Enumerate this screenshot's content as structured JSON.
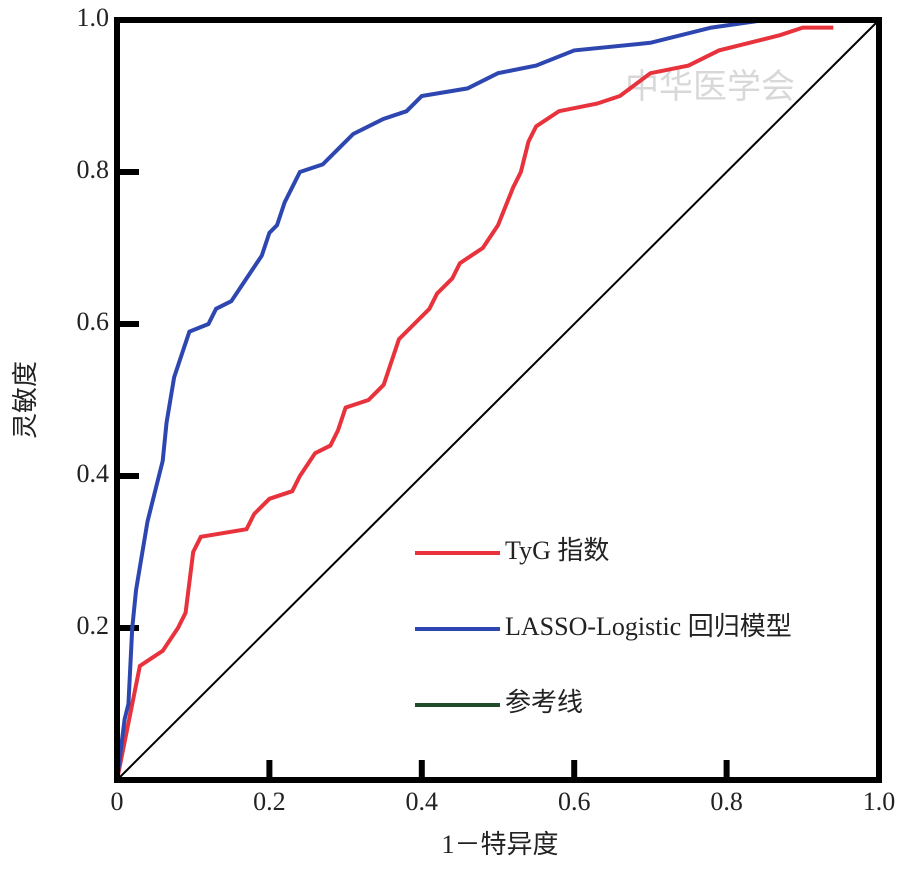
{
  "chart_data": {
    "type": "line",
    "xlabel": "1－特异度",
    "ylabel": "灵敏度",
    "watermark": "中华医学会",
    "xlim": [
      0,
      1
    ],
    "ylim": [
      0,
      1
    ],
    "xticks": [
      0,
      0.2,
      0.4,
      0.6,
      0.8,
      {
        "value": 1,
        "label": "1.0"
      }
    ],
    "yticks": [
      0.2,
      0.4,
      0.6,
      0.8,
      {
        "value": 1,
        "label": "1.0"
      }
    ],
    "legend": "lower right",
    "series": [
      {
        "name": "TyG 指数",
        "color": "#e8323c",
        "x": [
          0,
          0.01,
          0.02,
          0.03,
          0.06,
          0.08,
          0.09,
          0.1,
          0.11,
          0.17,
          0.18,
          0.2,
          0.23,
          0.24,
          0.26,
          0.28,
          0.29,
          0.3,
          0.33,
          0.35,
          0.36,
          0.37,
          0.39,
          0.41,
          0.42,
          0.44,
          0.45,
          0.48,
          0.5,
          0.52,
          0.53,
          0.54,
          0.55,
          0.58,
          0.63,
          0.66,
          0.7,
          0.75,
          0.79,
          0.83,
          0.87,
          0.9,
          0.94
        ],
        "values": [
          0,
          0.05,
          0.1,
          0.15,
          0.17,
          0.2,
          0.22,
          0.3,
          0.32,
          0.33,
          0.35,
          0.37,
          0.38,
          0.4,
          0.43,
          0.44,
          0.46,
          0.49,
          0.5,
          0.52,
          0.55,
          0.58,
          0.6,
          0.62,
          0.64,
          0.66,
          0.68,
          0.7,
          0.73,
          0.78,
          0.8,
          0.84,
          0.86,
          0.88,
          0.89,
          0.9,
          0.93,
          0.94,
          0.96,
          0.97,
          0.98,
          0.99,
          0.99
        ]
      },
      {
        "name": "LASSO-Logistic 回归模型",
        "color": "#2e47b0",
        "x": [
          0,
          0.01,
          0.015,
          0.02,
          0.025,
          0.03,
          0.04,
          0.05,
          0.06,
          0.065,
          0.075,
          0.085,
          0.095,
          0.12,
          0.13,
          0.15,
          0.17,
          0.19,
          0.2,
          0.21,
          0.22,
          0.23,
          0.24,
          0.27,
          0.29,
          0.31,
          0.35,
          0.38,
          0.4,
          0.46,
          0.5,
          0.55,
          0.6,
          0.7,
          0.78,
          0.85,
          1
        ],
        "values": [
          0,
          0.08,
          0.1,
          0.2,
          0.25,
          0.28,
          0.34,
          0.38,
          0.42,
          0.47,
          0.53,
          0.56,
          0.59,
          0.6,
          0.62,
          0.63,
          0.66,
          0.69,
          0.72,
          0.73,
          0.76,
          0.78,
          0.8,
          0.81,
          0.83,
          0.85,
          0.87,
          0.88,
          0.9,
          0.91,
          0.93,
          0.94,
          0.96,
          0.97,
          0.99,
          1,
          1
        ]
      },
      {
        "name": "参考线",
        "color": "#1f4d2b",
        "line_color": "#000000",
        "x": [
          0,
          1
        ],
        "values": [
          0,
          1
        ]
      }
    ]
  }
}
